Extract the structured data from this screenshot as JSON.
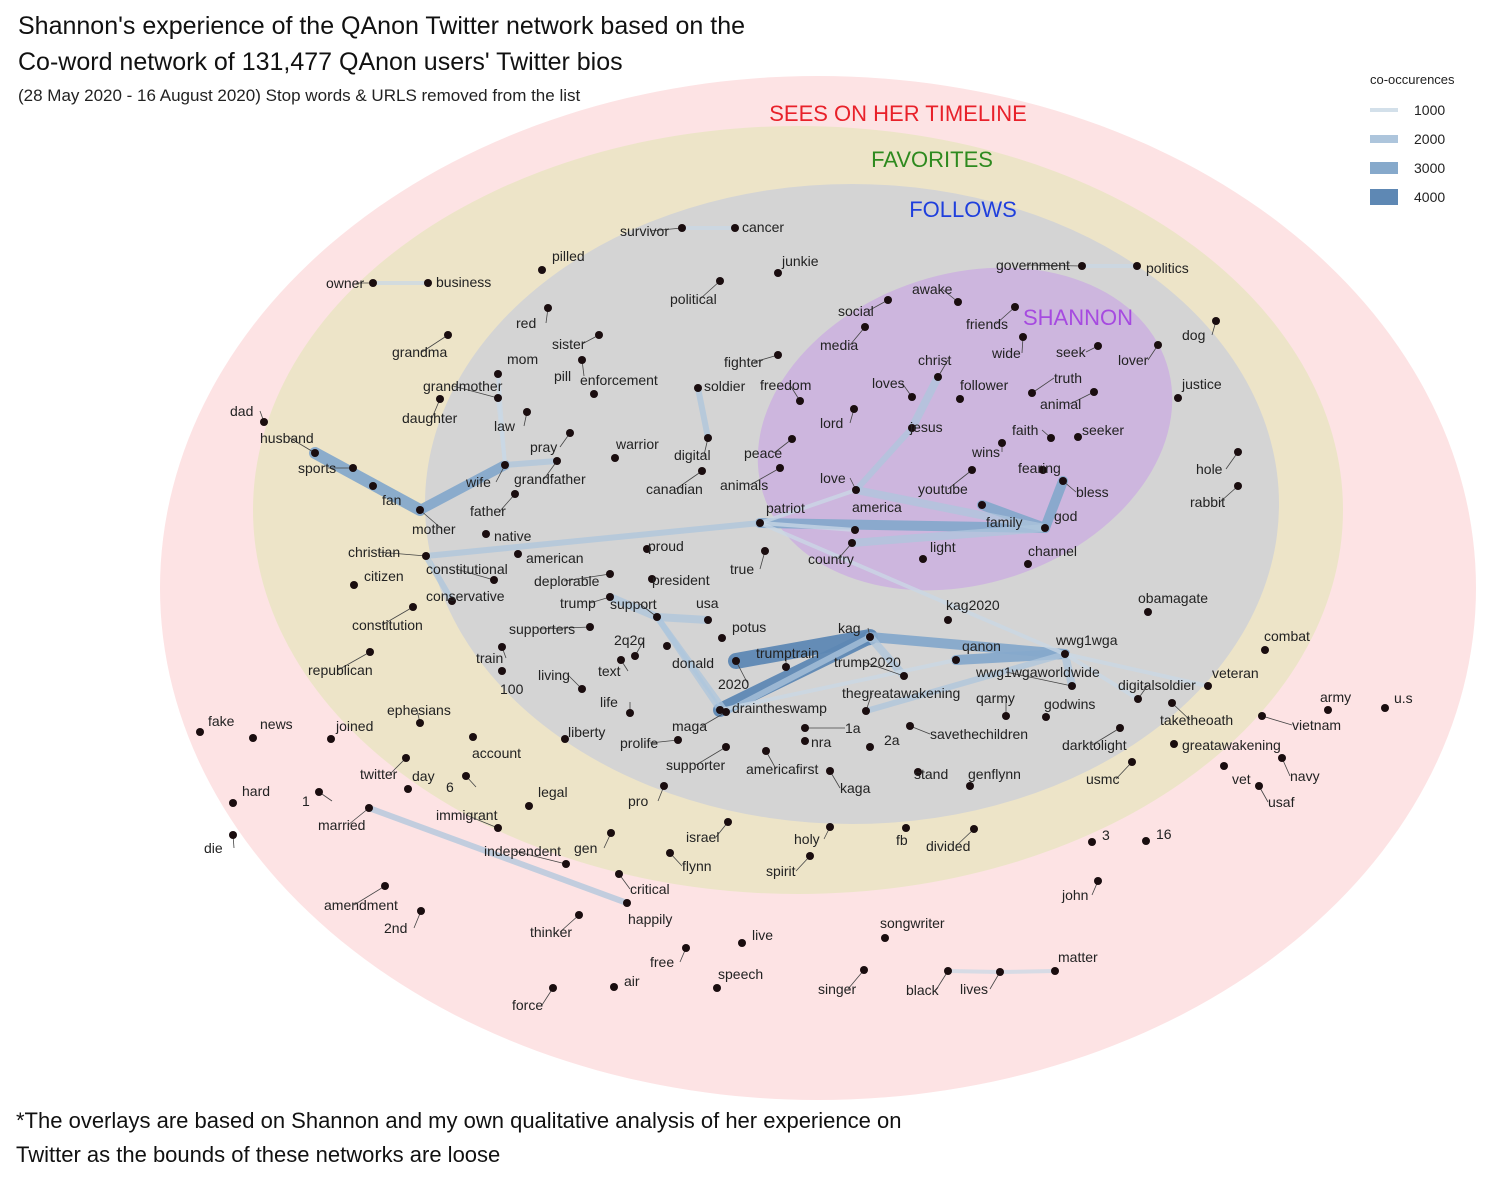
{
  "title_line1": "Shannon's experience of the QAnon Twitter network based on the",
  "title_line2": "Co-word network of 131,477 QAnon users' Twitter bios",
  "subtitle": "(28 May 2020 - 16 August 2020) Stop words & URLS removed from the list",
  "footnote_line1": "*The overlays are based on Shannon and my own qualitative analysis of her experience on",
  "footnote_line2": "Twitter as the bounds of these networks are loose",
  "legend": {
    "title": "co-occurences",
    "items": [
      {
        "label": "1000",
        "value": 1000,
        "color": "#d3e0ea"
      },
      {
        "label": "2000",
        "value": 2000,
        "color": "#adc5dc"
      },
      {
        "label": "3000",
        "value": 3000,
        "color": "#86a9cb"
      },
      {
        "label": "4000",
        "value": 4000,
        "color": "#5e88b4"
      }
    ]
  },
  "zones": [
    {
      "name": "sees-on-her-timeline",
      "label": "SEES ON HER TIMELINE",
      "color": "#e8212a",
      "fill": "#fde3e4"
    },
    {
      "name": "favorites",
      "label": "FAVORITES",
      "color": "#2e8a1f",
      "fill": "#ede4c8"
    },
    {
      "name": "follows",
      "label": "FOLLOWS",
      "color": "#1f3fdd",
      "fill": "#d2d2d2"
    },
    {
      "name": "shannon",
      "label": "SHANNON",
      "color": "#a64ae0",
      "fill": "#cdb7dc"
    }
  ],
  "chart_data": {
    "type": "network",
    "nodes": [
      {
        "id": "survivor",
        "label": "survivor"
      },
      {
        "id": "cancer",
        "label": "cancer"
      },
      {
        "id": "owner",
        "label": "owner"
      },
      {
        "id": "business",
        "label": "business"
      },
      {
        "id": "pilled",
        "label": "pilled"
      },
      {
        "id": "red",
        "label": "red"
      },
      {
        "id": "junkie",
        "label": "junkie"
      },
      {
        "id": "political",
        "label": "political"
      },
      {
        "id": "government",
        "label": "government"
      },
      {
        "id": "politics",
        "label": "politics"
      },
      {
        "id": "awake",
        "label": "awake"
      },
      {
        "id": "social",
        "label": "social"
      },
      {
        "id": "friends",
        "label": "friends"
      },
      {
        "id": "media",
        "label": "media"
      },
      {
        "id": "dog",
        "label": "dog"
      },
      {
        "id": "grandma",
        "label": "grandma"
      },
      {
        "id": "sister",
        "label": "sister"
      },
      {
        "id": "mom",
        "label": "mom"
      },
      {
        "id": "pill",
        "label": "pill"
      },
      {
        "id": "enforcement",
        "label": "enforcement"
      },
      {
        "id": "fighter",
        "label": "fighter"
      },
      {
        "id": "christ",
        "label": "christ"
      },
      {
        "id": "wide",
        "label": "wide"
      },
      {
        "id": "seek",
        "label": "seek"
      },
      {
        "id": "lover",
        "label": "lover"
      },
      {
        "id": "grandmother",
        "label": "grandmother"
      },
      {
        "id": "soldier",
        "label": "soldier"
      },
      {
        "id": "freedom",
        "label": "freedom"
      },
      {
        "id": "loves",
        "label": "loves"
      },
      {
        "id": "follower",
        "label": "follower"
      },
      {
        "id": "truth",
        "label": "truth"
      },
      {
        "id": "justice",
        "label": "justice"
      },
      {
        "id": "daughter",
        "label": "daughter"
      },
      {
        "id": "law",
        "label": "law"
      },
      {
        "id": "animal",
        "label": "animal"
      },
      {
        "id": "dad",
        "label": "dad"
      },
      {
        "id": "lord",
        "label": "lord"
      },
      {
        "id": "jesus",
        "label": "jesus"
      },
      {
        "id": "faith",
        "label": "faith"
      },
      {
        "id": "seeker",
        "label": "seeker"
      },
      {
        "id": "husband",
        "label": "husband"
      },
      {
        "id": "pray",
        "label": "pray"
      },
      {
        "id": "warrior",
        "label": "warrior"
      },
      {
        "id": "peace",
        "label": "peace"
      },
      {
        "id": "digital",
        "label": "digital"
      },
      {
        "id": "wins",
        "label": "wins"
      },
      {
        "id": "hole",
        "label": "hole"
      },
      {
        "id": "sports",
        "label": "sports"
      },
      {
        "id": "wife",
        "label": "wife"
      },
      {
        "id": "grandfather",
        "label": "grandfather"
      },
      {
        "id": "love",
        "label": "love"
      },
      {
        "id": "fearing",
        "label": "fearing"
      },
      {
        "id": "canadian",
        "label": "canadian"
      },
      {
        "id": "animals",
        "label": "animals"
      },
      {
        "id": "youtube",
        "label": "youtube"
      },
      {
        "id": "bless",
        "label": "bless"
      },
      {
        "id": "fan",
        "label": "fan"
      },
      {
        "id": "rabbit",
        "label": "rabbit"
      },
      {
        "id": "father",
        "label": "father"
      },
      {
        "id": "patriot",
        "label": "patriot"
      },
      {
        "id": "america",
        "label": "america"
      },
      {
        "id": "god",
        "label": "god"
      },
      {
        "id": "family",
        "label": "family"
      },
      {
        "id": "mother",
        "label": "mother"
      },
      {
        "id": "native",
        "label": "native"
      },
      {
        "id": "proud",
        "label": "proud"
      },
      {
        "id": "light",
        "label": "light"
      },
      {
        "id": "channel",
        "label": "channel"
      },
      {
        "id": "christian",
        "label": "christian"
      },
      {
        "id": "american",
        "label": "american"
      },
      {
        "id": "country",
        "label": "country"
      },
      {
        "id": "constitutional",
        "label": "constitutional"
      },
      {
        "id": "true",
        "label": "true"
      },
      {
        "id": "citizen",
        "label": "citizen"
      },
      {
        "id": "deplorable",
        "label": "deplorable"
      },
      {
        "id": "president",
        "label": "president"
      },
      {
        "id": "conservative",
        "label": "conservative"
      },
      {
        "id": "trump",
        "label": "trump"
      },
      {
        "id": "support",
        "label": "support"
      },
      {
        "id": "usa",
        "label": "usa"
      },
      {
        "id": "kag2020",
        "label": "kag2020"
      },
      {
        "id": "obamagate",
        "label": "obamagate"
      },
      {
        "id": "constitution",
        "label": "constitution"
      },
      {
        "id": "supporters",
        "label": "supporters"
      },
      {
        "id": "potus",
        "label": "potus"
      },
      {
        "id": "kag",
        "label": "kag"
      },
      {
        "id": "qanon",
        "label": "qanon"
      },
      {
        "id": "wwg1wga",
        "label": "wwg1wga"
      },
      {
        "id": "combat",
        "label": "combat"
      },
      {
        "id": "2q2q",
        "label": "2q2q"
      },
      {
        "id": "train",
        "label": "train"
      },
      {
        "id": "donald",
        "label": "donald"
      },
      {
        "id": "trumptrain",
        "label": "trumptrain"
      },
      {
        "id": "trump2020",
        "label": "trump2020"
      },
      {
        "id": "republican",
        "label": "republican"
      },
      {
        "id": "text",
        "label": "text"
      },
      {
        "id": "wwg1wgaworldwide",
        "label": "wwg1wgaworldwide"
      },
      {
        "id": "veteran",
        "label": "veteran"
      },
      {
        "id": "100",
        "label": "100"
      },
      {
        "id": "living",
        "label": "living"
      },
      {
        "id": "2020",
        "label": "2020"
      },
      {
        "id": "digitalsoldier",
        "label": "digitalsoldier"
      },
      {
        "id": "thegreatawakening",
        "label": "thegreatawakening"
      },
      {
        "id": "qarmy",
        "label": "qarmy"
      },
      {
        "id": "army",
        "label": "army"
      },
      {
        "id": "us",
        "label": "u.s"
      },
      {
        "id": "life",
        "label": "life"
      },
      {
        "id": "draintheswamp",
        "label": "draintheswamp"
      },
      {
        "id": "godwins",
        "label": "godwins"
      },
      {
        "id": "ephesians",
        "label": "ephesians"
      },
      {
        "id": "fake",
        "label": "fake"
      },
      {
        "id": "news",
        "label": "news"
      },
      {
        "id": "joined",
        "label": "joined"
      },
      {
        "id": "maga",
        "label": "maga"
      },
      {
        "id": "1a",
        "label": "1a"
      },
      {
        "id": "taketheoath",
        "label": "taketheoath"
      },
      {
        "id": "vietnam",
        "label": "vietnam"
      },
      {
        "id": "liberty",
        "label": "liberty"
      },
      {
        "id": "savethechildren",
        "label": "savethechildren"
      },
      {
        "id": "2a",
        "label": "2a"
      },
      {
        "id": "account",
        "label": "account"
      },
      {
        "id": "prolife",
        "label": "prolife"
      },
      {
        "id": "nra",
        "label": "nra"
      },
      {
        "id": "darktolight",
        "label": "darktolight"
      },
      {
        "id": "greatawakening",
        "label": "greatawakening"
      },
      {
        "id": "supporter",
        "label": "supporter"
      },
      {
        "id": "twitter",
        "label": "twitter"
      },
      {
        "id": "day",
        "label": "day"
      },
      {
        "id": "americafirst",
        "label": "americafirst"
      },
      {
        "id": "stand",
        "label": "stand"
      },
      {
        "id": "genflynn",
        "label": "genflynn"
      },
      {
        "id": "navy",
        "label": "navy"
      },
      {
        "id": "6",
        "label": "6"
      },
      {
        "id": "usmc",
        "label": "usmc"
      },
      {
        "id": "vet",
        "label": "vet"
      },
      {
        "id": "hard",
        "label": "hard"
      },
      {
        "id": "1",
        "label": "1"
      },
      {
        "id": "kaga",
        "label": "kaga"
      },
      {
        "id": "legal",
        "label": "legal"
      },
      {
        "id": "usaf",
        "label": "usaf"
      },
      {
        "id": "pro",
        "label": "pro"
      },
      {
        "id": "married",
        "label": "married"
      },
      {
        "id": "immigrant",
        "label": "immigrant"
      },
      {
        "id": "israel",
        "label": "israel"
      },
      {
        "id": "holy",
        "label": "holy"
      },
      {
        "id": "3",
        "label": "3"
      },
      {
        "id": "16",
        "label": "16"
      },
      {
        "id": "die",
        "label": "die"
      },
      {
        "id": "fb",
        "label": "fb"
      },
      {
        "id": "divided",
        "label": "divided"
      },
      {
        "id": "independent",
        "label": "independent"
      },
      {
        "id": "gen",
        "label": "gen"
      },
      {
        "id": "flynn",
        "label": "flynn"
      },
      {
        "id": "spirit",
        "label": "spirit"
      },
      {
        "id": "critical",
        "label": "critical"
      },
      {
        "id": "john",
        "label": "john"
      },
      {
        "id": "amendment",
        "label": "amendment"
      },
      {
        "id": "happily",
        "label": "happily"
      },
      {
        "id": "thinker",
        "label": "thinker"
      },
      {
        "id": "2nd",
        "label": "2nd"
      },
      {
        "id": "songwriter",
        "label": "songwriter"
      },
      {
        "id": "live",
        "label": "live"
      },
      {
        "id": "free",
        "label": "free"
      },
      {
        "id": "matter",
        "label": "matter"
      },
      {
        "id": "speech",
        "label": "speech"
      },
      {
        "id": "air",
        "label": "air"
      },
      {
        "id": "singer",
        "label": "singer"
      },
      {
        "id": "black",
        "label": "black"
      },
      {
        "id": "lives",
        "label": "lives"
      },
      {
        "id": "force",
        "label": "force"
      }
    ],
    "edges": [
      {
        "source": "2020",
        "target": "kag",
        "value": 4000
      },
      {
        "source": "draintheswamp",
        "target": "kag",
        "value": 3500
      },
      {
        "source": "kag",
        "target": "wwg1wga",
        "value": 2500
      },
      {
        "source": "kag",
        "target": "trump2020",
        "value": 2000
      },
      {
        "source": "qanon",
        "target": "wwg1wga",
        "value": 2500
      },
      {
        "source": "wwg1wga",
        "target": "wwg1wgaworldwide",
        "value": 2000
      },
      {
        "source": "wwg1wga",
        "target": "thegreatawakening",
        "value": 1500
      },
      {
        "source": "husband",
        "target": "mother",
        "value": 3000
      },
      {
        "source": "wife",
        "target": "mother",
        "value": 2500
      },
      {
        "source": "wife",
        "target": "grandfather",
        "value": 1500
      },
      {
        "source": "patriot",
        "target": "god",
        "value": 2500
      },
      {
        "source": "god",
        "target": "bless",
        "value": 2500
      },
      {
        "source": "god",
        "target": "family",
        "value": 2500
      },
      {
        "source": "god",
        "target": "country",
        "value": 2000
      },
      {
        "source": "love",
        "target": "god",
        "value": 2000
      },
      {
        "source": "jesus",
        "target": "love",
        "value": 1500
      },
      {
        "source": "jesus",
        "target": "christ",
        "value": 2000
      },
      {
        "source": "support",
        "target": "usa",
        "value": 2000
      },
      {
        "source": "trump",
        "target": "support",
        "value": 2000
      },
      {
        "source": "support",
        "target": "draintheswamp",
        "value": 1500
      },
      {
        "source": "support",
        "target": "maga",
        "value": 1500
      },
      {
        "source": "maga",
        "target": "kag",
        "value": 1500
      },
      {
        "source": "patriot",
        "target": "christian",
        "value": 1500
      },
      {
        "source": "christian",
        "target": "conservative",
        "value": 1500
      },
      {
        "source": "married",
        "target": "happily",
        "value": 1500
      },
      {
        "source": "soldier",
        "target": "digital",
        "value": 1500
      },
      {
        "source": "mom",
        "target": "wife",
        "value": 1000
      },
      {
        "source": "grandmother",
        "target": "wife",
        "value": 1000
      },
      {
        "source": "patriot",
        "target": "wwg1wga",
        "value": 1000
      },
      {
        "source": "patriot",
        "target": "love",
        "value": 1000
      },
      {
        "source": "patriot",
        "target": "america",
        "value": 1000
      },
      {
        "source": "draintheswamp",
        "target": "qanon",
        "value": 1000
      },
      {
        "source": "draintheswamp",
        "target": "maga",
        "value": 1000
      },
      {
        "source": "digitalsoldier",
        "target": "wwg1wga",
        "value": 1000
      },
      {
        "source": "veteran",
        "target": "wwg1wga",
        "value": 1000
      },
      {
        "source": "owner",
        "target": "business",
        "value": 1000
      },
      {
        "source": "survivor",
        "target": "cancer",
        "value": 1000
      },
      {
        "source": "government",
        "target": "politics",
        "value": 1000
      },
      {
        "source": "black",
        "target": "lives",
        "value": 1000
      },
      {
        "source": "lives",
        "target": "matter",
        "value": 1000
      }
    ]
  }
}
